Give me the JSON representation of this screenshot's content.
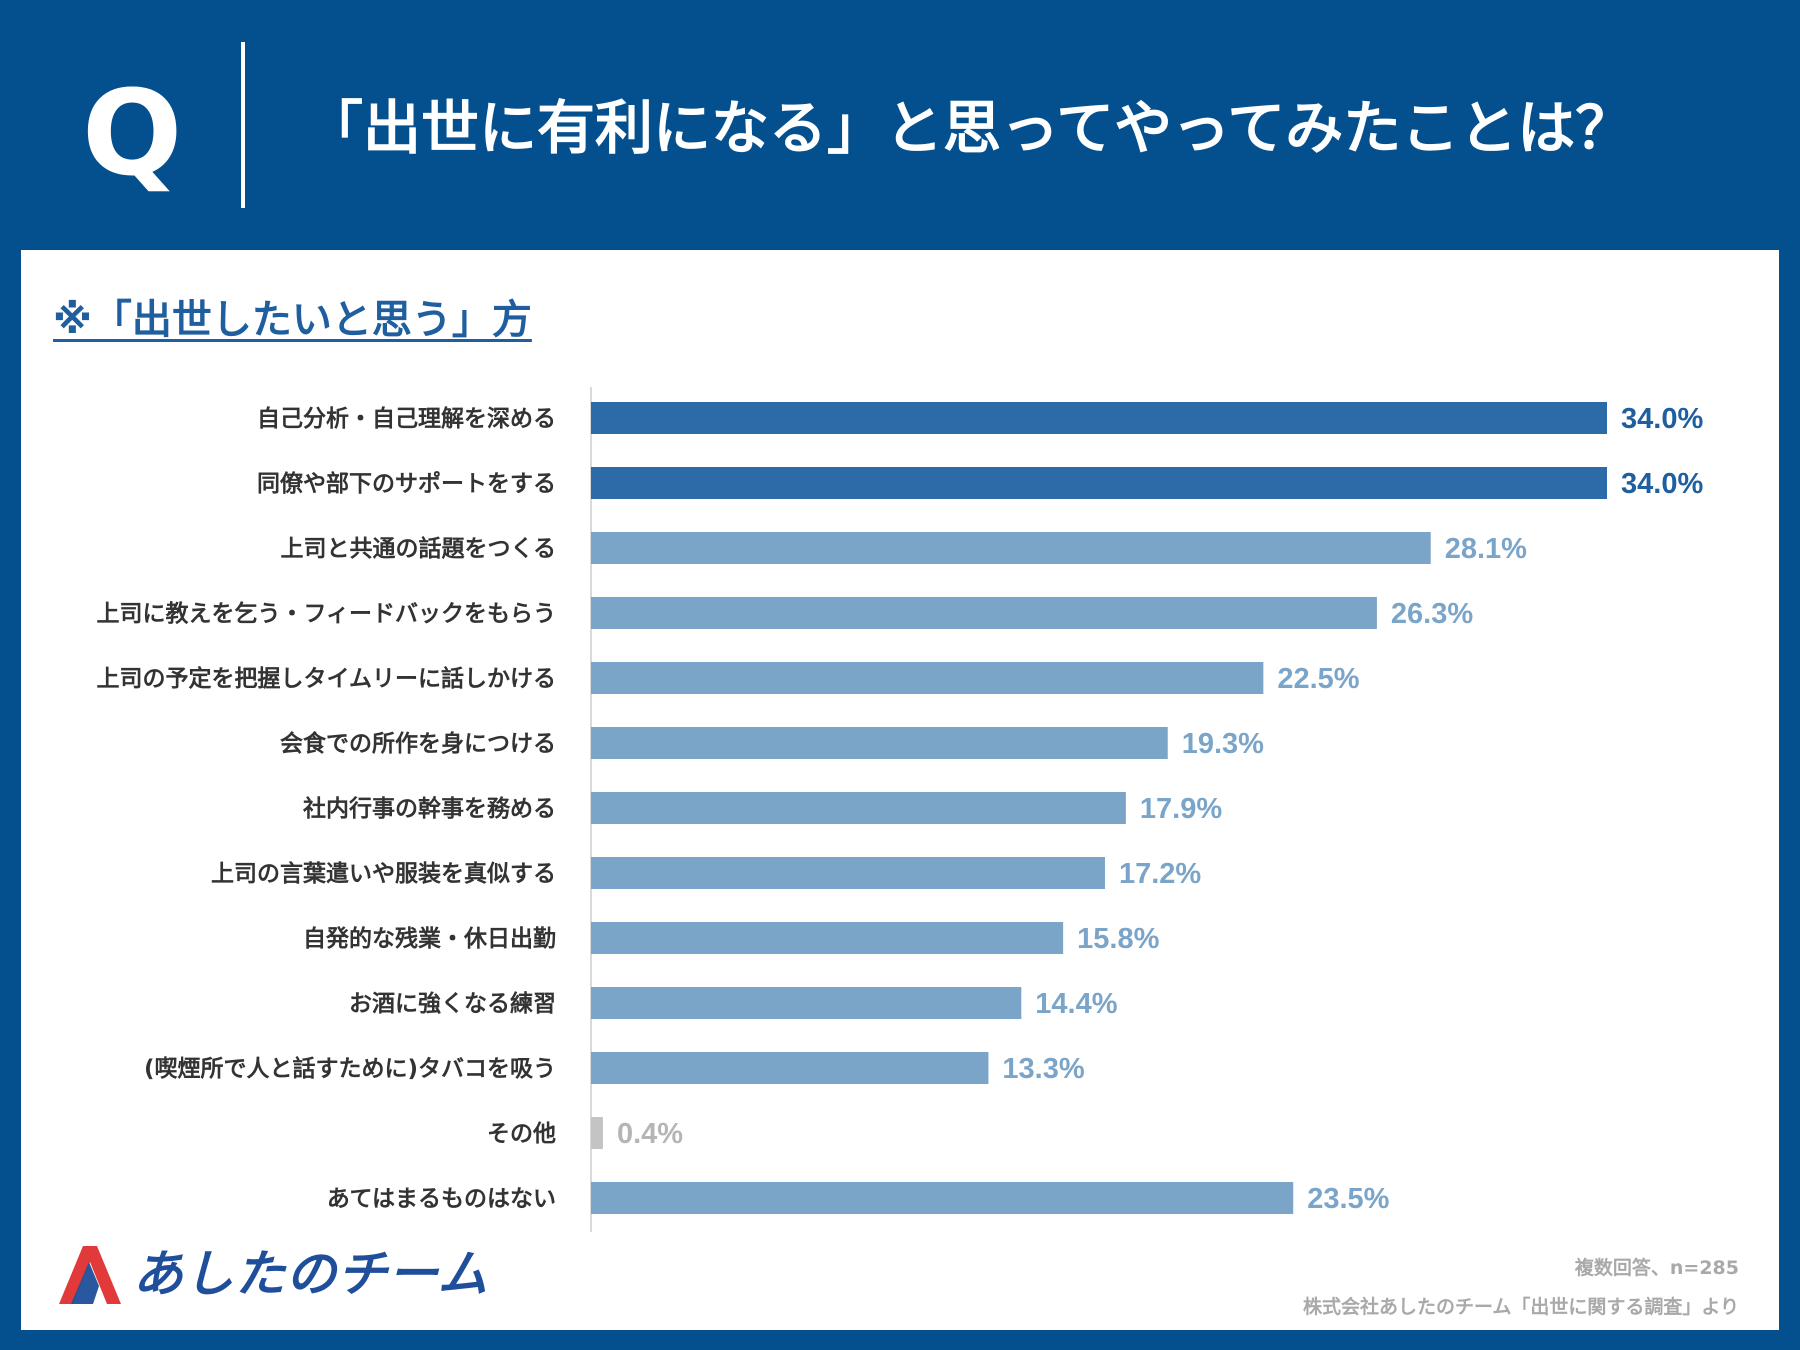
{
  "header": {
    "q_label": "Q",
    "title": "「出世に有利になる」と思ってやってみたことは？"
  },
  "panel": {
    "subtitle": "※「出世したいと思う」方"
  },
  "chart_data": {
    "type": "bar",
    "orientation": "horizontal",
    "title": "「出世に有利になる」と思ってやってみたことは？",
    "subtitle": "※「出世したいと思う」方",
    "xlabel": "",
    "ylabel": "",
    "value_unit": "%",
    "xlim": [
      0,
      34
    ],
    "categories": [
      "自己分析・自己理解を深める",
      "同僚や部下のサポートをする",
      "上司と共通の話題をつくる",
      "上司に教えを乞う・フィードバックをもらう",
      "上司の予定を把握しタイムリーに話しかける",
      "会食での所作を身につける",
      "社内行事の幹事を務める",
      "上司の言葉遣いや服装を真似する",
      "自発的な残業・休日出勤",
      "お酒に強くなる練習",
      "(喫煙所で人と話すために)タバコを吸う",
      "その他",
      "あてはまるものはない"
    ],
    "values": [
      34.0,
      34.0,
      28.1,
      26.3,
      22.5,
      19.3,
      17.9,
      17.2,
      15.8,
      14.4,
      13.3,
      0.4,
      23.5
    ],
    "value_labels": [
      "34.0%",
      "34.0%",
      "28.1%",
      "26.3%",
      "22.5%",
      "19.3%",
      "17.9%",
      "17.2%",
      "15.8%",
      "14.4%",
      "13.3%",
      "0.4%",
      "23.5%"
    ],
    "bar_colors": [
      "#2d6aa8",
      "#2d6aa8",
      "#7ba5c8",
      "#7ba5c8",
      "#7ba5c8",
      "#7ba5c8",
      "#7ba5c8",
      "#7ba5c8",
      "#7ba5c8",
      "#7ba5c8",
      "#7ba5c8",
      "#c4c4c4",
      "#7ba5c8"
    ],
    "label_colors": [
      "#1f5fa0",
      "#1f5fa0",
      "#7ba5c8",
      "#7ba5c8",
      "#7ba5c8",
      "#7ba5c8",
      "#7ba5c8",
      "#7ba5c8",
      "#7ba5c8",
      "#7ba5c8",
      "#7ba5c8",
      "#b5b5b5",
      "#7ba5c8"
    ],
    "grid": false
  },
  "footer": {
    "logo_text": "あしたのチーム",
    "note_sample": "複数回答、n=285",
    "note_source": "株式会社あしたのチーム「出世に関する調査」より"
  },
  "colors": {
    "background": "#04508f",
    "panel": "#ffffff",
    "accent": "#1f5fa0",
    "logo_red": "#e23a3a",
    "logo_blue": "#1f4f9a"
  }
}
